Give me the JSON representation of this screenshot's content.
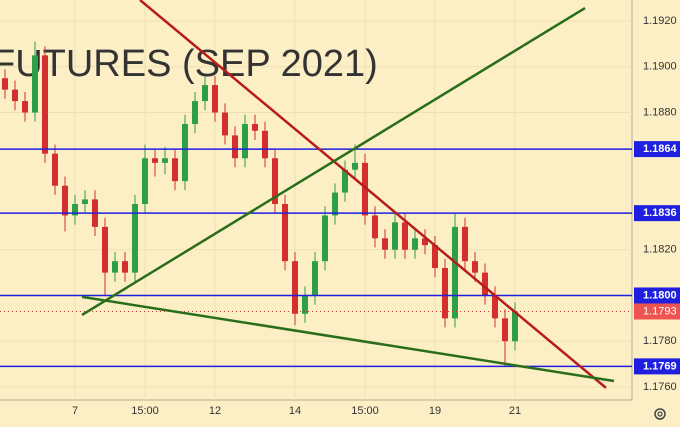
{
  "chart_data": {
    "type": "candlestick",
    "watermark": "FUTURES (SEP 2021)",
    "up_color": "#2e9e48",
    "down_color": "#d32f2f",
    "grid": true,
    "xlim": [
      -0.5,
      62.7
    ],
    "ylim": [
      1.17543,
      1.19292
    ],
    "yticks": [
      {
        "value": 1.176,
        "label": "1.1760"
      },
      {
        "value": 1.178,
        "label": "1.1780"
      },
      {
        "value": 1.182,
        "label": "1.1820"
      },
      {
        "value": 1.188,
        "label": "1.1880"
      },
      {
        "value": 1.19,
        "label": "1.1900"
      },
      {
        "value": 1.192,
        "label": "1.1920"
      }
    ],
    "xticks": [
      {
        "value": 7,
        "label": "7"
      },
      {
        "value": 14,
        "label": "15:00"
      },
      {
        "value": 21,
        "label": "12"
      },
      {
        "value": 29,
        "label": "14"
      },
      {
        "value": 36,
        "label": "15:00"
      },
      {
        "value": 43,
        "label": "19"
      },
      {
        "value": 51,
        "label": "21"
      }
    ],
    "levels": [
      {
        "value": 1.1864,
        "label": "1.1864"
      },
      {
        "value": 1.1836,
        "label": "1.1836"
      },
      {
        "value": 1.18,
        "label": "1.1800"
      },
      {
        "value": 1.1769,
        "label": "1.1769"
      }
    ],
    "level_color": "#1f1fe0",
    "last_price": {
      "value": 1.1793,
      "label": "1.1793"
    },
    "trend_lines": [
      {
        "color": "#b71c1c",
        "x": [
          13.5,
          60.1
        ],
        "y": [
          1.19292,
          1.17596
        ]
      },
      {
        "color": "#2a6e1a",
        "x": [
          7.7,
          58
        ],
        "y": [
          1.17915,
          1.19257
        ]
      },
      {
        "color": "#2a6e1a",
        "x": [
          7.7,
          60.9
        ],
        "y": [
          1.17994,
          1.17626
        ]
      }
    ],
    "open": [
      1.1895,
      1.189,
      1.1885,
      1.188,
      1.1905,
      1.1862,
      1.1848,
      1.1835,
      1.184,
      1.1842,
      1.183,
      1.181,
      1.1815,
      1.181,
      1.184,
      1.186,
      1.1858,
      1.186,
      1.185,
      1.1875,
      1.1885,
      1.1892,
      1.188,
      1.187,
      1.186,
      1.1875,
      1.1872,
      1.186,
      1.184,
      1.1815,
      1.1792,
      1.18,
      1.1815,
      1.1835,
      1.1845,
      1.1855,
      1.1858,
      1.1835,
      1.1825,
      1.182,
      1.1832,
      1.182,
      1.1825,
      1.1822,
      1.1812,
      1.179,
      1.183,
      1.1815,
      1.181,
      1.18,
      1.179,
      1.178
    ],
    "high": [
      1.1899,
      1.1894,
      1.1889,
      1.1911,
      1.1909,
      1.1866,
      1.1852,
      1.1844,
      1.1846,
      1.1846,
      1.1834,
      1.1819,
      1.1819,
      1.1844,
      1.1866,
      1.1864,
      1.1865,
      1.1864,
      1.1879,
      1.1889,
      1.1896,
      1.1896,
      1.1884,
      1.1874,
      1.1879,
      1.1879,
      1.1876,
      1.1864,
      1.1844,
      1.1819,
      1.1804,
      1.1819,
      1.1839,
      1.1849,
      1.1859,
      1.1866,
      1.1862,
      1.1839,
      1.1829,
      1.1836,
      1.1836,
      1.1829,
      1.1829,
      1.1826,
      1.1816,
      1.1836,
      1.1834,
      1.1819,
      1.1814,
      1.1804,
      1.1794,
      1.1797
    ],
    "low": [
      1.1886,
      1.1881,
      1.1876,
      1.1876,
      1.1858,
      1.1844,
      1.1828,
      1.1831,
      1.1836,
      1.1826,
      1.18,
      1.1806,
      1.1806,
      1.1806,
      1.1836,
      1.1852,
      1.1853,
      1.1846,
      1.1846,
      1.1871,
      1.1881,
      1.1876,
      1.1866,
      1.1856,
      1.1856,
      1.1868,
      1.1856,
      1.1836,
      1.1811,
      1.1787,
      1.1788,
      1.1796,
      1.1811,
      1.1831,
      1.1841,
      1.1851,
      1.1831,
      1.1821,
      1.1816,
      1.1816,
      1.1816,
      1.1816,
      1.1818,
      1.1808,
      1.1786,
      1.1786,
      1.1811,
      1.1806,
      1.1796,
      1.1786,
      1.1769,
      1.1776
    ],
    "close": [
      1.189,
      1.1885,
      1.188,
      1.1905,
      1.1862,
      1.1848,
      1.1835,
      1.184,
      1.1842,
      1.183,
      1.181,
      1.1815,
      1.181,
      1.184,
      1.186,
      1.1858,
      1.186,
      1.185,
      1.1875,
      1.1885,
      1.1892,
      1.188,
      1.187,
      1.186,
      1.1875,
      1.1872,
      1.186,
      1.184,
      1.1815,
      1.1792,
      1.18,
      1.1815,
      1.1835,
      1.1845,
      1.1855,
      1.1858,
      1.1835,
      1.1825,
      1.182,
      1.1832,
      1.182,
      1.1825,
      1.1822,
      1.1812,
      1.179,
      1.183,
      1.1815,
      1.181,
      1.18,
      1.179,
      1.178,
      1.1793
    ]
  }
}
